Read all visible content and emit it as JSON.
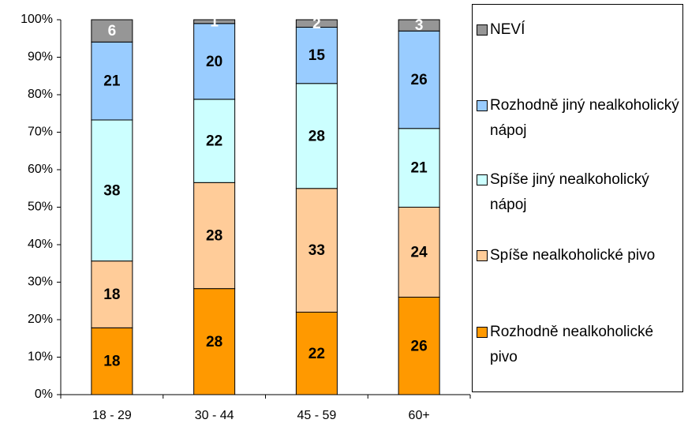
{
  "chart_data": {
    "type": "bar",
    "stacking": "percent",
    "categories": [
      "18 - 29",
      "30 - 44",
      "45 - 59",
      "60+"
    ],
    "series": [
      {
        "name": "Rozhodně nealkoholické pivo",
        "color": "#ff9900",
        "label_color": "#000000",
        "values": [
          18,
          28,
          22,
          26
        ]
      },
      {
        "name": "Spíše nealkoholické pivo",
        "color": "#ffcc99",
        "label_color": "#000000",
        "values": [
          18,
          28,
          33,
          24
        ]
      },
      {
        "name": "Spíše jiný nealkoholický nápoj",
        "color": "#ccffff",
        "label_color": "#000000",
        "values": [
          38,
          22,
          28,
          21
        ]
      },
      {
        "name": "Rozhodně jiný nealkoholický nápoj",
        "color": "#99ccff",
        "label_color": "#000000",
        "values": [
          21,
          20,
          15,
          26
        ]
      },
      {
        "name": "NEVÍ",
        "color": "#969696",
        "label_color": "#ffffff",
        "values": [
          6,
          1,
          2,
          3
        ]
      }
    ],
    "ylim": [
      0,
      100
    ],
    "yticks": [
      {
        "value": 0,
        "label": "0%"
      },
      {
        "value": 10,
        "label": "10%"
      },
      {
        "value": 20,
        "label": "20%"
      },
      {
        "value": 30,
        "label": "30%"
      },
      {
        "value": 40,
        "label": "40%"
      },
      {
        "value": 50,
        "label": "50%"
      },
      {
        "value": 60,
        "label": "60%"
      },
      {
        "value": 70,
        "label": "70%"
      },
      {
        "value": 80,
        "label": "80%"
      },
      {
        "value": 90,
        "label": "90%"
      },
      {
        "value": 100,
        "label": "100%"
      }
    ],
    "legend": "right",
    "grid": false
  }
}
